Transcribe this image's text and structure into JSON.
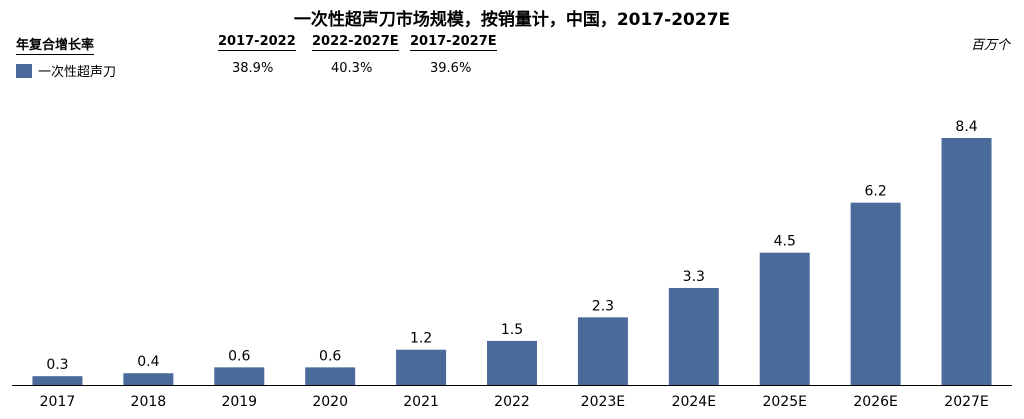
{
  "chart_data": {
    "type": "bar",
    "title": "一次性超声刀市场规模，按销量计，中国，2017-2027E",
    "unit": "百万个",
    "categories": [
      "2017",
      "2018",
      "2019",
      "2020",
      "2021",
      "2022",
      "2023E",
      "2024E",
      "2025E",
      "2026E",
      "2027E"
    ],
    "series": [
      {
        "name": "一次性超声刀",
        "values": [
          0.3,
          0.4,
          0.6,
          0.6,
          1.2,
          1.5,
          2.3,
          3.3,
          4.5,
          6.2,
          8.4
        ],
        "labels": [
          "0.3",
          "0.4",
          "0.6",
          "0.6",
          "1.2",
          "1.5",
          "2.3",
          "3.3",
          "4.5",
          "6.2",
          "8.4"
        ]
      }
    ],
    "ylim": [
      0,
      8.4
    ],
    "grid": false,
    "bar_color": "#4a6a9a",
    "cagr": {
      "header": "年复合增长率",
      "periods": [
        "2017-2022",
        "2022-2027E",
        "2017-2027E"
      ],
      "rows": [
        {
          "label": "一次性超声刀",
          "values": [
            "38.9%",
            "40.3%",
            "39.6%"
          ]
        }
      ]
    }
  }
}
